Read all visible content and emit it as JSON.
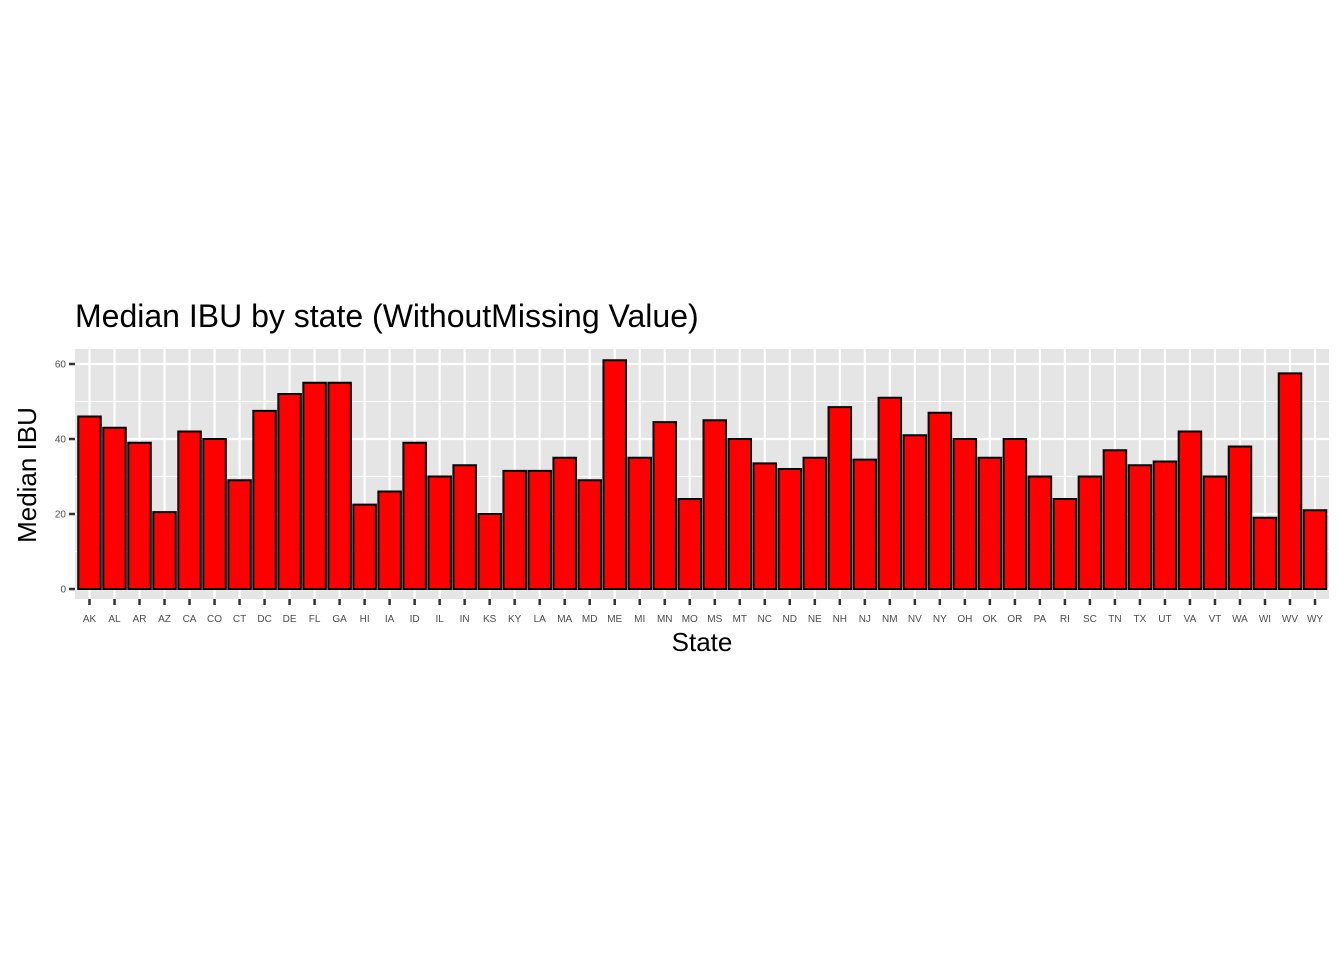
{
  "chart_data": {
    "type": "bar",
    "title": "Median IBU by state (WithoutMissing Value)",
    "xlabel": "State",
    "ylabel": "Median IBU",
    "categories": [
      "AK",
      "AL",
      "AR",
      "AZ",
      "CA",
      "CO",
      "CT",
      "DC",
      "DE",
      "FL",
      "GA",
      "HI",
      "IA",
      "ID",
      "IL",
      "IN",
      "KS",
      "KY",
      "LA",
      "MA",
      "MD",
      "ME",
      "MI",
      "MN",
      "MO",
      "MS",
      "MT",
      "NC",
      "ND",
      "NE",
      "NH",
      "NJ",
      "NM",
      "NV",
      "NY",
      "OH",
      "OK",
      "OR",
      "PA",
      "RI",
      "SC",
      "TN",
      "TX",
      "UT",
      "VA",
      "VT",
      "WA",
      "WI",
      "WV",
      "WY"
    ],
    "values": [
      46,
      43,
      39,
      20.5,
      42,
      40,
      29,
      47.5,
      52,
      55,
      55,
      22.5,
      26,
      39,
      30,
      33,
      20,
      31.5,
      31.5,
      35,
      29,
      61,
      35,
      44.5,
      24,
      45,
      40,
      33.5,
      32,
      35,
      48.5,
      34.5,
      51,
      41,
      47,
      40,
      35,
      40,
      30,
      24,
      30,
      37,
      33,
      34,
      42,
      30,
      38,
      19,
      57.5,
      21
    ],
    "yticks": [
      0,
      20,
      40,
      60
    ],
    "ylim": [
      0,
      64
    ],
    "grid": true,
    "legend": "none",
    "colors": {
      "bar_fill": "#ff0000",
      "bar_stroke": "#000000",
      "panel_background": "#e5e5e5",
      "grid": "#ffffff",
      "tick_color": "#333333"
    }
  }
}
